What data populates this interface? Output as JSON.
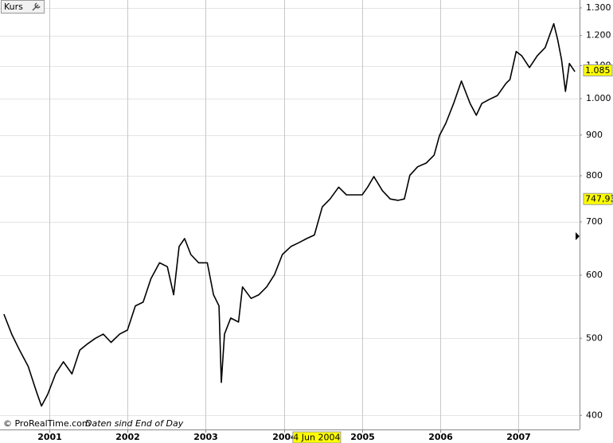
{
  "chart_data": {
    "type": "line",
    "footer": "© ProRealTime.com",
    "footer_note": "Daten sind End of Day",
    "x": [
      2000.42,
      2000.52,
      2000.62,
      2000.73,
      2000.83,
      2000.9,
      2000.98,
      2001.08,
      2001.18,
      2001.29,
      2001.39,
      2001.49,
      2001.59,
      2001.69,
      2001.79,
      2001.9,
      2002.0,
      2002.1,
      2002.2,
      2002.3,
      2002.41,
      2002.51,
      2002.59,
      2002.66,
      2002.73,
      2002.81,
      2002.91,
      2003.02,
      2003.1,
      2003.17,
      2003.2,
      2003.24,
      2003.32,
      2003.42,
      2003.47,
      2003.58,
      2003.68,
      2003.78,
      2003.88,
      2003.98,
      2004.09,
      2004.19,
      2004.29,
      2004.39,
      2004.49,
      2004.59,
      2004.7,
      2004.8,
      2004.9,
      2005.0,
      2005.07,
      2005.15,
      2005.26,
      2005.36,
      2005.46,
      2005.54,
      2005.61,
      2005.71,
      2005.82,
      2005.92,
      2005.99,
      2006.07,
      2006.17,
      2006.27,
      2006.38,
      2006.46,
      2006.53,
      2006.63,
      2006.73,
      2006.84,
      2006.89,
      2006.97,
      2007.04,
      2007.14,
      2007.24,
      2007.34,
      2007.45,
      2007.5,
      2007.55,
      2007.6,
      2007.65,
      2007.72
    ],
    "series": [
      {
        "name": "Kurs",
        "color": "#000000",
        "values": [
          536,
          506,
          483,
          461,
          430,
          411,
          425,
          451,
          467,
          451,
          483,
          492,
          500,
          506,
          494,
          506,
          512,
          549,
          555,
          594,
          622,
          615,
          567,
          652,
          667,
          637,
          622,
          622,
          567,
          549,
          440,
          506,
          530,
          524,
          580,
          561,
          567,
          580,
          601,
          637,
          652,
          659,
          667,
          674,
          731,
          748,
          774,
          757,
          757,
          757,
          774,
          798,
          766,
          748,
          745,
          748,
          801,
          821,
          830,
          849,
          899,
          931,
          986,
          1052,
          986,
          953,
          986,
          998,
          1009,
          1045,
          1057,
          1146,
          1132,
          1094,
          1132,
          1159,
          1242,
          1186,
          1119,
          1021,
          1107,
          1081
        ]
      }
    ],
    "xlim": [
      2000.37,
      2007.78
    ],
    "ylim": [
      384,
      1330
    ],
    "log_y": true,
    "grid": true,
    "xticks": [
      2001,
      2002,
      2003,
      2004,
      2005,
      2006,
      2007
    ],
    "yticks": [
      400,
      500,
      600,
      700,
      800,
      900,
      {
        "value": 1000,
        "label": "1.000"
      },
      {
        "value": 1100,
        "label": "1.100"
      },
      {
        "value": 1200,
        "label": "1.200"
      },
      {
        "value": 1300,
        "label": "1.300"
      }
    ],
    "price_labels": [
      {
        "value": 1085,
        "label": "1.085"
      },
      {
        "value": 747.93,
        "label": "747,93"
      }
    ],
    "cursor_label": {
      "value": 2004.42,
      "label": "4 Jun 2004"
    }
  }
}
